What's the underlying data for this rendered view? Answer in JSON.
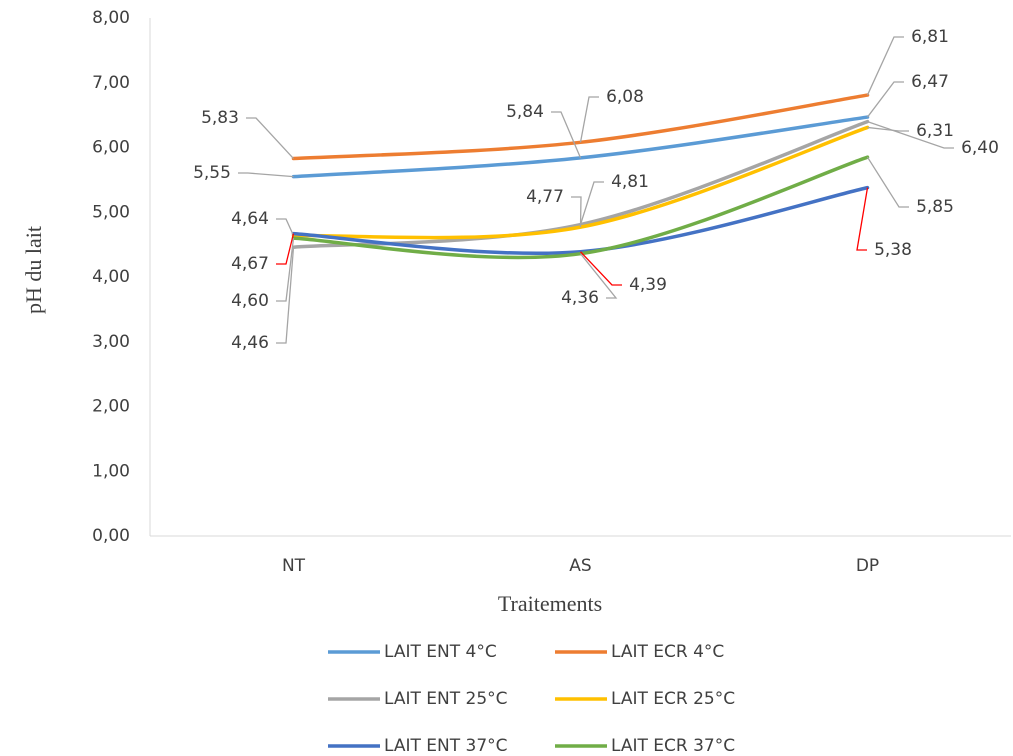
{
  "chart_data": {
    "type": "line",
    "x_label": "Traitements",
    "y_label": "pH du lait",
    "categories": [
      "NT",
      "AS",
      "DP"
    ],
    "ylim": [
      0,
      8
    ],
    "yticks": [
      {
        "value": 0,
        "label": "0,00"
      },
      {
        "value": 1,
        "label": "1,00"
      },
      {
        "value": 2,
        "label": "2,00"
      },
      {
        "value": 3,
        "label": "3,00"
      },
      {
        "value": 4,
        "label": "4,00"
      },
      {
        "value": 5,
        "label": "5,00"
      },
      {
        "value": 6,
        "label": "6,00"
      },
      {
        "value": 7,
        "label": "7,00"
      },
      {
        "value": 8,
        "label": "8,00"
      }
    ],
    "smooth": true,
    "legend": "bottom",
    "series": [
      {
        "name": "LAIT ENT 4°C",
        "color": "#5b9bd5",
        "values": [
          5.55,
          5.84,
          6.47
        ],
        "value_labels": [
          "5,55",
          "5,84",
          "6,47"
        ]
      },
      {
        "name": "LAIT ECR 4°C",
        "color": "#ed7d31",
        "values": [
          5.83,
          6.08,
          6.81
        ],
        "value_labels": [
          "5,83",
          "6,08",
          "6,81"
        ]
      },
      {
        "name": "LAIT ENT 25°C",
        "color": "#a5a5a5",
        "values": [
          4.46,
          4.81,
          6.4
        ],
        "value_labels": [
          "4,46",
          "4,81",
          "6,40"
        ]
      },
      {
        "name": "LAIT ECR 25°C",
        "color": "#ffc000",
        "values": [
          4.64,
          4.77,
          6.31
        ],
        "value_labels": [
          "4,64",
          "4,77",
          "6,31"
        ]
      },
      {
        "name": "LAIT ENT 37°C",
        "color": "#4472c4",
        "values": [
          4.67,
          4.39,
          5.38
        ],
        "value_labels": [
          "4,67",
          "4,39",
          "5,38"
        ]
      },
      {
        "name": "LAIT ECR 37°C",
        "color": "#70ad47",
        "values": [
          4.6,
          4.36,
          5.85
        ],
        "value_labels": [
          "4,60",
          "4,36",
          "5,85"
        ]
      }
    ]
  }
}
